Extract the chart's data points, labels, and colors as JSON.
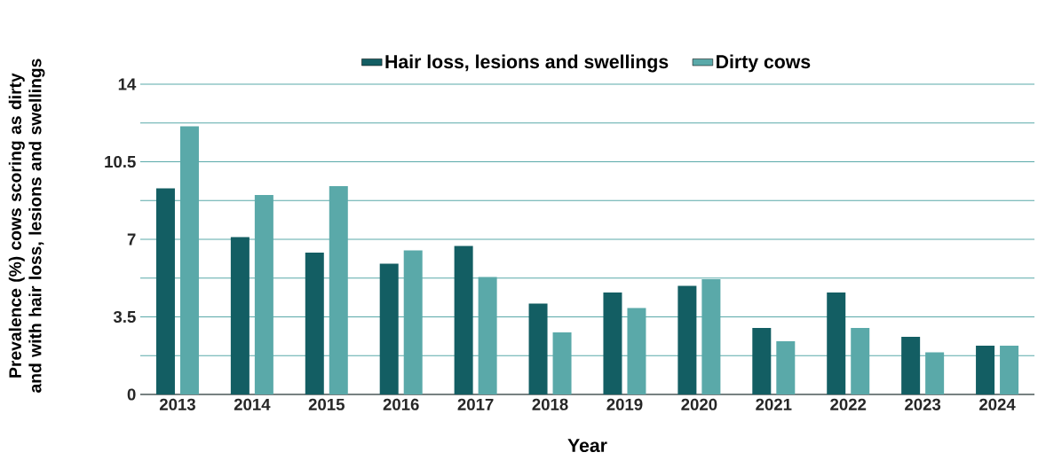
{
  "chart_data": {
    "type": "bar",
    "xlabel": "Year",
    "ylabel": "Prevalence (%) cows scoring as dirty and with hair loss, lesions and swellings",
    "categories": [
      "2013",
      "2014",
      "2015",
      "2016",
      "2017",
      "2018",
      "2019",
      "2020",
      "2021",
      "2022",
      "2023",
      "2024"
    ],
    "series": [
      {
        "name": "Hair loss, lesions and swellings",
        "color": "#135e63",
        "values": [
          9.3,
          7.1,
          6.4,
          5.9,
          6.7,
          4.1,
          4.6,
          4.9,
          3.0,
          4.6,
          2.6,
          2.2
        ]
      },
      {
        "name": "Dirty cows",
        "color": "#5aa9a9",
        "values": [
          12.1,
          9.0,
          9.4,
          6.5,
          5.3,
          2.8,
          3.9,
          5.2,
          2.4,
          3.0,
          1.9,
          2.2
        ]
      }
    ],
    "ylim": [
      0,
      14
    ],
    "yticks": [
      0,
      {
        "value": 1.75,
        "label": null
      },
      3.5,
      {
        "value": 5.25,
        "label": null
      },
      7,
      {
        "value": 8.75,
        "label": null
      },
      10.5,
      {
        "value": 12.25,
        "label": null
      },
      14
    ],
    "grid": "y",
    "legend": "top"
  }
}
